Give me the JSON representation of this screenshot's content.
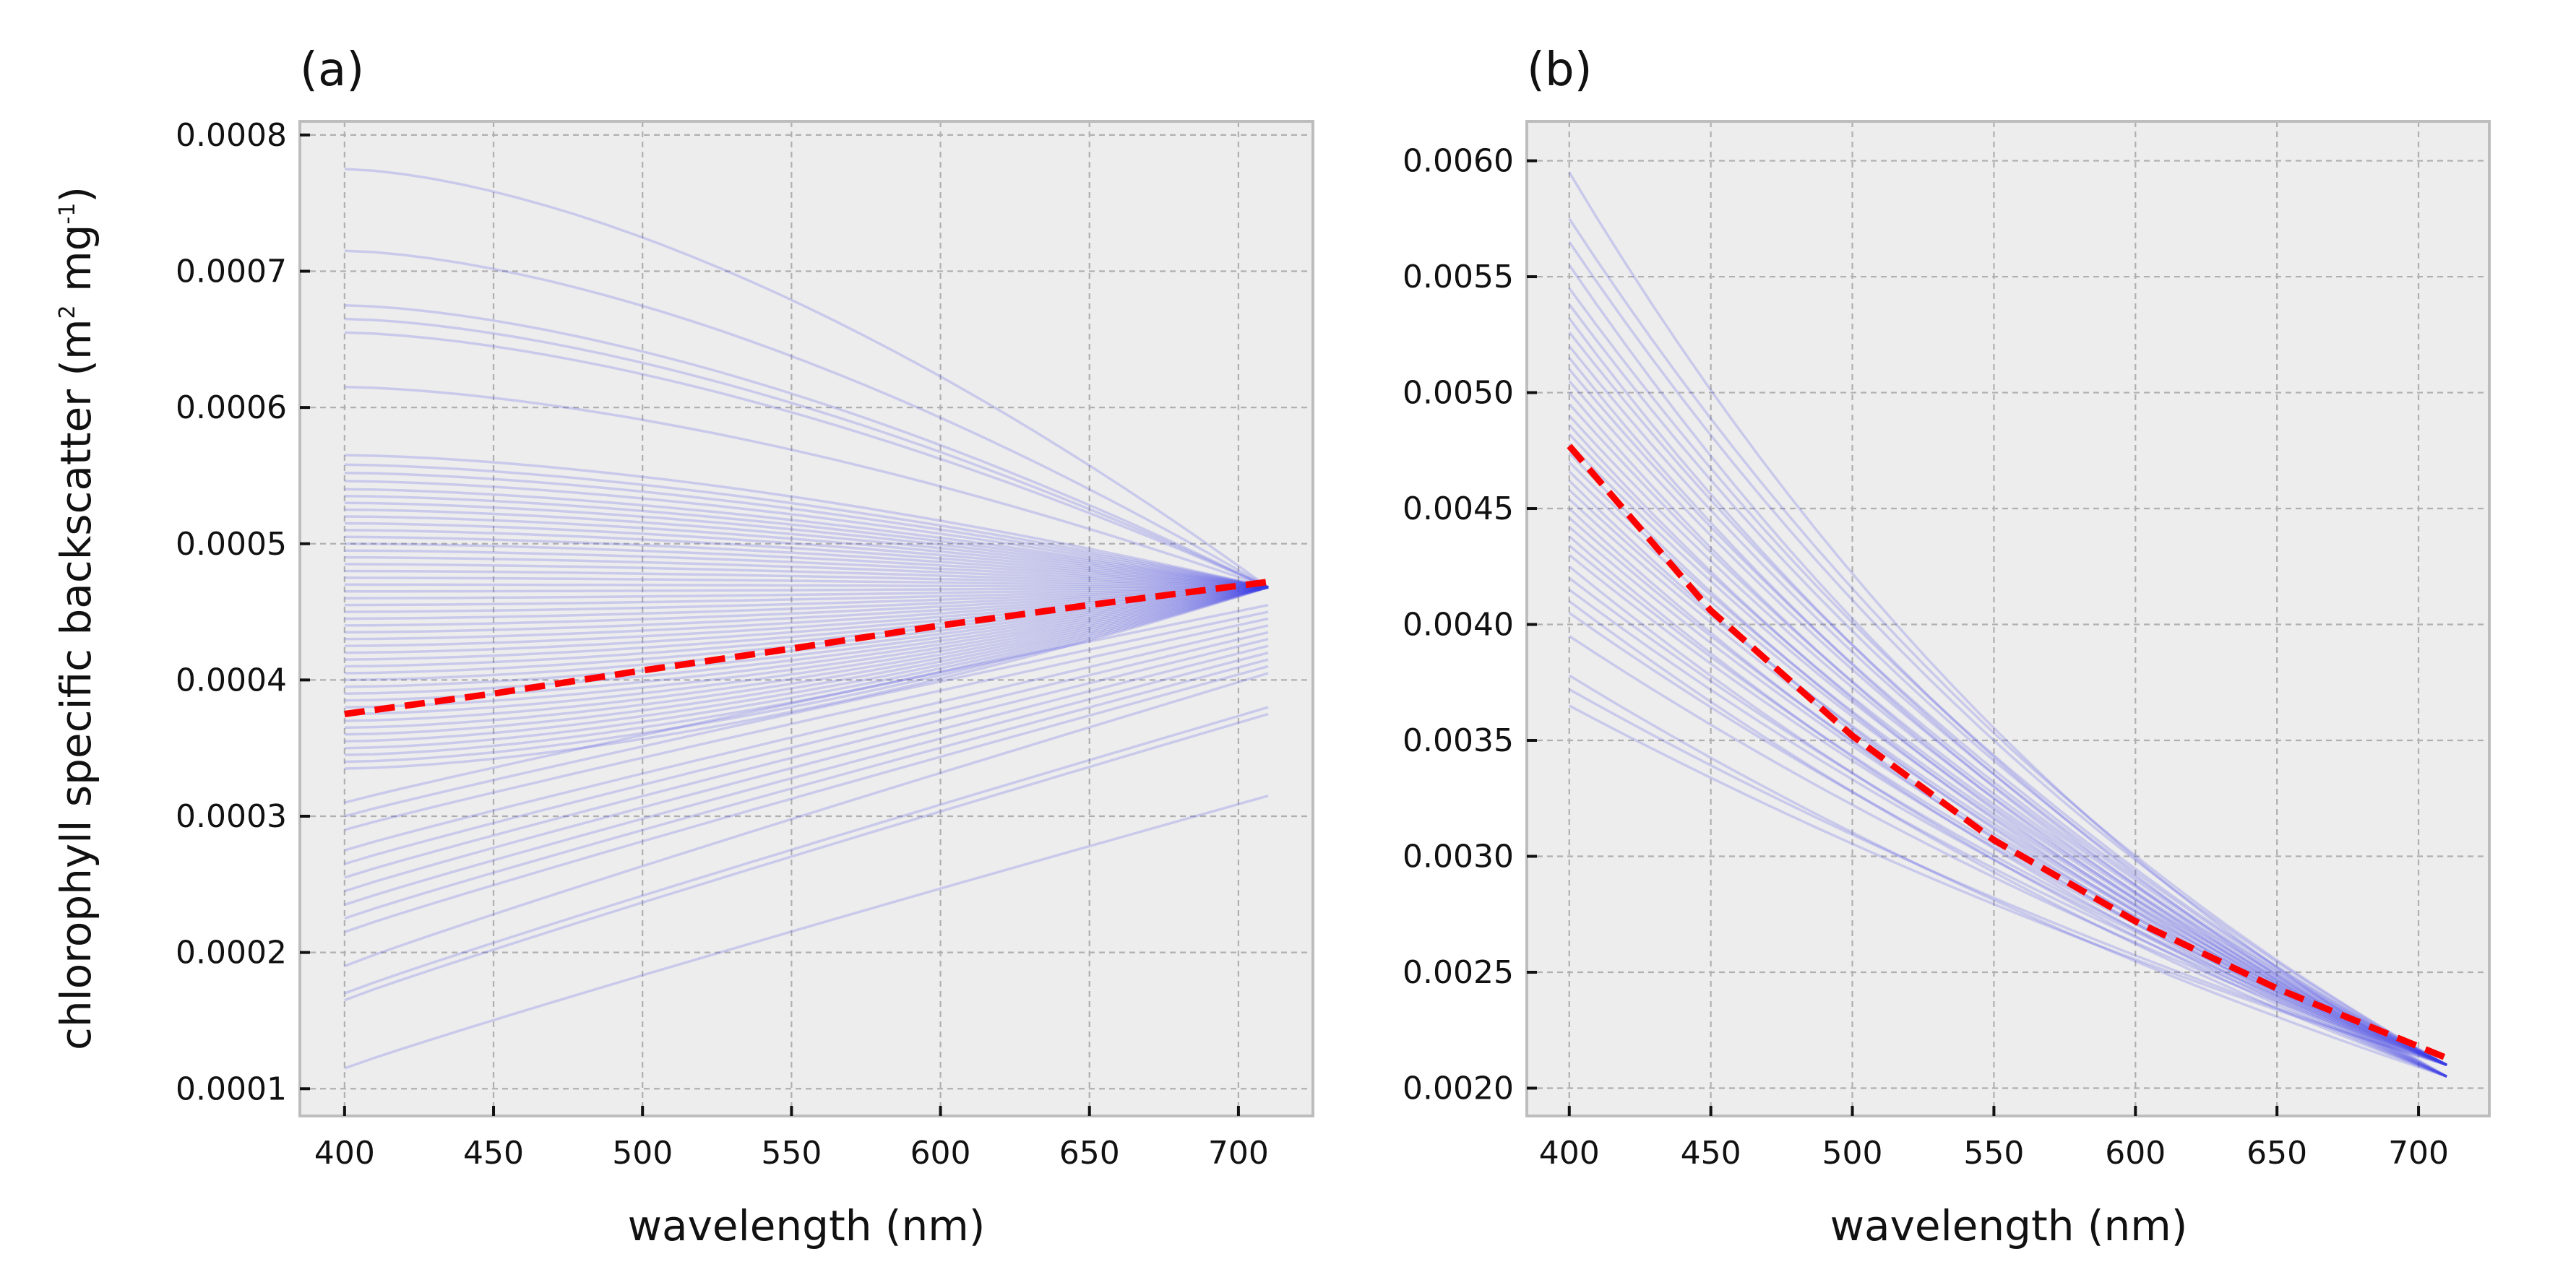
{
  "chart_data": [
    {
      "panel_label": "(a)",
      "type": "line",
      "xlabel": "wavelength (nm)",
      "ylabel_main": "chlorophyll specific backscatter (m",
      "ylabel_sup1": "2",
      "ylabel_mid": " mg",
      "ylabel_sup2": "-1",
      "ylabel_end": ")",
      "xlim": [
        385,
        725
      ],
      "ylim": [
        8e-05,
        0.00081
      ],
      "x_ticks": [
        400,
        450,
        500,
        550,
        600,
        650,
        700
      ],
      "x_tick_labels": [
        "400",
        "450",
        "500",
        "550",
        "600",
        "650",
        "700"
      ],
      "y_ticks": [
        0.0001,
        0.0002,
        0.0003,
        0.0004,
        0.0005,
        0.0006,
        0.0007,
        0.0008
      ],
      "y_tick_labels": [
        "0.0001",
        "0.0002",
        "0.0003",
        "0.0004",
        "0.0005",
        "0.0006",
        "0.0007",
        "0.0008"
      ],
      "grid": true,
      "x_range": [
        400,
        710
      ],
      "ensemble_color": "#3a3ae8",
      "mean_color": "#ff0000",
      "ensemble_start_values": [
        0.000775,
        0.000715,
        0.000675,
        0.000665,
        0.000655,
        0.000615,
        0.000565,
        0.000558,
        0.000552,
        0.000546,
        0.00054,
        0.000535,
        0.00053,
        0.000525,
        0.00052,
        0.000515,
        0.00051,
        0.000505,
        0.0005,
        0.000495,
        0.00049,
        0.000485,
        0.00048,
        0.000475,
        0.00047,
        0.000465,
        0.00046,
        0.000455,
        0.00045,
        0.000445,
        0.00044,
        0.000435,
        0.00043,
        0.000425,
        0.00042,
        0.000415,
        0.00041,
        0.000405,
        0.0004,
        0.000395,
        0.00039,
        0.000385,
        0.00038,
        0.000375,
        0.00037,
        0.000365,
        0.00036,
        0.000355,
        0.00035,
        0.000345,
        0.00034,
        0.000335
      ],
      "ensemble_end_values": [
        0.000468
      ],
      "low_lines": [
        {
          "start": 0.00031,
          "end": 0.000455
        },
        {
          "start": 0.0003,
          "end": 0.00045
        },
        {
          "start": 0.00029,
          "end": 0.000445
        },
        {
          "start": 0.000275,
          "end": 0.00044
        },
        {
          "start": 0.000265,
          "end": 0.000435
        },
        {
          "start": 0.000255,
          "end": 0.00043
        },
        {
          "start": 0.000245,
          "end": 0.000425
        },
        {
          "start": 0.000235,
          "end": 0.00042
        },
        {
          "start": 0.000225,
          "end": 0.000415
        },
        {
          "start": 0.000215,
          "end": 0.00041
        },
        {
          "start": 0.00019,
          "end": 0.000405
        },
        {
          "start": 0.00017,
          "end": 0.00038
        },
        {
          "start": 0.000165,
          "end": 0.000375
        },
        {
          "start": 0.000115,
          "end": 0.000315
        }
      ],
      "mean_series": {
        "x": [
          400,
          450,
          500,
          550,
          600,
          650,
          710
        ],
        "y": [
          0.000375,
          0.00039,
          0.000407,
          0.000423,
          0.00044,
          0.000455,
          0.000472
        ]
      }
    },
    {
      "panel_label": "(b)",
      "type": "line",
      "xlabel": "wavelength (nm)",
      "xlim": [
        385,
        725
      ],
      "ylim": [
        0.00188,
        0.00617
      ],
      "x_ticks": [
        400,
        450,
        500,
        550,
        600,
        650,
        700
      ],
      "x_tick_labels": [
        "400",
        "450",
        "500",
        "550",
        "600",
        "650",
        "700"
      ],
      "y_ticks": [
        0.002,
        0.0025,
        0.003,
        0.0035,
        0.004,
        0.0045,
        0.005,
        0.0055,
        0.006
      ],
      "y_tick_labels": [
        "0.0020",
        "0.0025",
        "0.0030",
        "0.0035",
        "0.0040",
        "0.0045",
        "0.0050",
        "0.0055",
        "0.0060"
      ],
      "grid": true,
      "x_range": [
        400,
        710
      ],
      "ensemble_color": "#3a3ae8",
      "mean_color": "#ff0000",
      "ensemble_start_values": [
        0.00595,
        0.00575,
        0.00565,
        0.00555,
        0.00545,
        0.00538,
        0.00532,
        0.00526,
        0.0052,
        0.00515,
        0.0051,
        0.00505,
        0.005,
        0.00495,
        0.0049,
        0.00486,
        0.00482,
        0.00478,
        0.00474,
        0.0047,
        0.00466,
        0.00462,
        0.00458,
        0.00454,
        0.0045,
        0.00446,
        0.00442,
        0.00438,
        0.00434,
        0.0043,
        0.00425,
        0.0042,
        0.00415,
        0.0041,
        0.00405,
        0.00395,
        0.00378,
        0.00372,
        0.00365
      ],
      "ensemble_end_values": [
        0.0021,
        0.00205
      ],
      "mean_series": {
        "x": [
          400,
          450,
          500,
          550,
          600,
          650,
          710
        ],
        "y": [
          0.00477,
          0.00406,
          0.00352,
          0.00307,
          0.00272,
          0.00243,
          0.00213
        ]
      }
    }
  ]
}
